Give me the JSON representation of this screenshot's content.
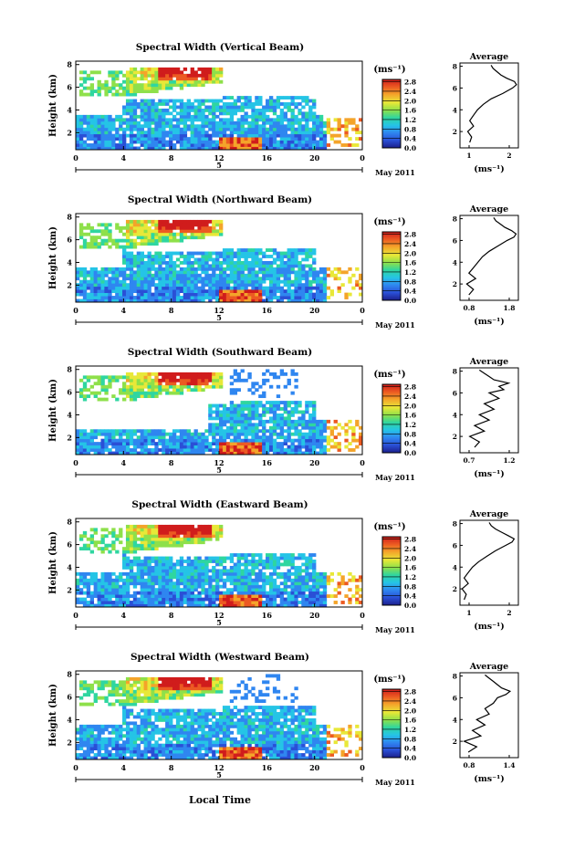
{
  "figure": {
    "xlabel": "Local Time",
    "date_label": "May 2011",
    "colorbar_unit": "(ms⁻¹)",
    "colorbar_ticks": [
      "0.0",
      "0.4",
      "0.8",
      "1.2",
      "1.6",
      "2.0",
      "2.4",
      "2.8"
    ],
    "colormap": [
      "#1c1f8c",
      "#2a4fd6",
      "#2f86f0",
      "#25c4e6",
      "#2fd6a0",
      "#8ee04a",
      "#e8e838",
      "#f4a42a",
      "#ec5a22",
      "#d01c1c"
    ],
    "ylabel": "Height (km)",
    "x_ticks": [
      "0",
      "4",
      "8",
      "12",
      "16",
      "20",
      "0"
    ],
    "day_tick": "5",
    "y_ticks": [
      "2",
      "4",
      "6",
      "8"
    ]
  },
  "chart_data": [
    {
      "type": "heatmap",
      "title": "Spectral Width (Vertical Beam)",
      "xlabel": "Local Time",
      "ylabel": "Height (km)",
      "xlim": [
        0,
        24
      ],
      "ylim": [
        0.5,
        8.3
      ],
      "clim": [
        0.0,
        2.9
      ],
      "average_profile": {
        "title": "Average",
        "xlabel": "(ms⁻¹)",
        "xlim": [
          0.6,
          2.1
        ],
        "x_ticks": [
          "1",
          "2"
        ],
        "y_ticks": [
          "2",
          "4",
          "6",
          "8"
        ],
        "heights": [
          1.0,
          1.5,
          2.0,
          2.5,
          3.0,
          3.5,
          4.0,
          4.5,
          5.0,
          5.5,
          6.0,
          6.3,
          6.6,
          6.9,
          7.2,
          7.5,
          7.8,
          8.1
        ],
        "values": [
          0.85,
          0.9,
          0.8,
          0.95,
          0.85,
          0.95,
          1.05,
          1.2,
          1.4,
          1.7,
          1.95,
          2.05,
          2.0,
          1.8,
          1.65,
          1.55,
          1.45,
          1.4
        ]
      }
    },
    {
      "type": "heatmap",
      "title": "Spectral Width (Northward Beam)",
      "xlabel": "Local Time",
      "ylabel": "Height (km)",
      "xlim": [
        0,
        24
      ],
      "ylim": [
        0.5,
        8.3
      ],
      "clim": [
        0.0,
        2.9
      ],
      "average_profile": {
        "title": "Average",
        "xlabel": "(ms⁻¹)",
        "xlim": [
          0.6,
          1.9
        ],
        "x_ticks": [
          "0.8",
          "1.8"
        ],
        "y_ticks": [
          "2",
          "4",
          "6",
          "8"
        ],
        "heights": [
          1.0,
          1.5,
          2.0,
          2.5,
          3.0,
          3.5,
          4.0,
          4.5,
          5.0,
          5.5,
          6.0,
          6.3,
          6.6,
          6.9,
          7.2,
          7.5,
          7.8,
          8.1
        ],
        "values": [
          0.8,
          0.9,
          0.75,
          0.95,
          0.8,
          0.9,
          1.0,
          1.1,
          1.25,
          1.45,
          1.65,
          1.8,
          1.85,
          1.75,
          1.6,
          1.5,
          1.4,
          1.35
        ]
      }
    },
    {
      "type": "heatmap",
      "title": "Spectral Width (Southward Beam)",
      "xlabel": "Local Time",
      "ylabel": "Height (km)",
      "xlim": [
        0,
        24
      ],
      "ylim": [
        0.5,
        8.3
      ],
      "clim": [
        0.0,
        2.9
      ],
      "average_profile": {
        "title": "Average",
        "xlabel": "(ms⁻¹)",
        "xlim": [
          0.65,
          1.25
        ],
        "x_ticks": [
          "0.7",
          "1.2"
        ],
        "y_ticks": [
          "2",
          "4",
          "6",
          "8"
        ],
        "heights": [
          1.0,
          1.5,
          2.0,
          2.5,
          3.0,
          3.5,
          4.0,
          4.5,
          5.0,
          5.5,
          6.0,
          6.3,
          6.6,
          6.9,
          7.2,
          7.5,
          7.8,
          8.1
        ],
        "values": [
          0.8,
          0.85,
          0.75,
          0.9,
          0.8,
          0.95,
          0.85,
          1.0,
          0.9,
          1.05,
          0.95,
          1.1,
          1.05,
          1.15,
          1.0,
          0.95,
          0.9,
          0.85
        ]
      }
    },
    {
      "type": "heatmap",
      "title": "Spectral Width (Eastward Beam)",
      "xlabel": "Local Time",
      "ylabel": "Height (km)",
      "xlim": [
        0,
        24
      ],
      "ylim": [
        0.5,
        8.3
      ],
      "clim": [
        0.0,
        2.9
      ],
      "average_profile": {
        "title": "Average",
        "xlabel": "(ms⁻¹)",
        "xlim": [
          0.75,
          2.15
        ],
        "x_ticks": [
          "1",
          "2"
        ],
        "y_ticks": [
          "2",
          "4",
          "6",
          "8"
        ],
        "heights": [
          1.0,
          1.5,
          2.0,
          2.5,
          3.0,
          3.5,
          4.0,
          4.5,
          5.0,
          5.5,
          6.0,
          6.3,
          6.6,
          6.9,
          7.2,
          7.5,
          7.8,
          8.1
        ],
        "values": [
          0.85,
          0.9,
          0.8,
          0.95,
          0.85,
          0.95,
          1.05,
          1.2,
          1.4,
          1.6,
          1.85,
          2.0,
          2.05,
          1.9,
          1.75,
          1.6,
          1.5,
          1.45
        ]
      }
    },
    {
      "type": "heatmap",
      "title": "Spectral Width (Westward Beam)",
      "xlabel": "Local Time",
      "ylabel": "Height (km)",
      "xlim": [
        0,
        24
      ],
      "ylim": [
        0.5,
        8.3
      ],
      "clim": [
        0.0,
        2.9
      ],
      "average_profile": {
        "title": "Average",
        "xlabel": "(ms⁻¹)",
        "xlim": [
          0.75,
          1.45
        ],
        "x_ticks": [
          "0.8",
          "1.4"
        ],
        "y_ticks": [
          "2",
          "4",
          "6",
          "8"
        ],
        "heights": [
          1.0,
          1.5,
          2.0,
          2.5,
          3.0,
          3.5,
          4.0,
          4.5,
          5.0,
          5.5,
          6.0,
          6.3,
          6.6,
          6.9,
          7.2,
          7.5,
          7.8,
          8.1
        ],
        "values": [
          0.85,
          0.95,
          0.8,
          1.0,
          0.9,
          1.05,
          0.95,
          1.1,
          1.05,
          1.15,
          1.2,
          1.3,
          1.35,
          1.25,
          1.2,
          1.15,
          1.1,
          1.05
        ]
      }
    }
  ]
}
